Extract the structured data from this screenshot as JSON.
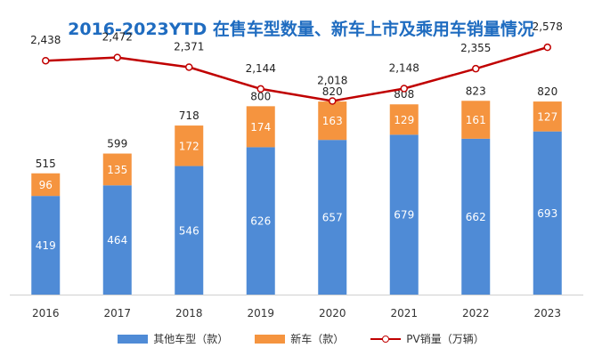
{
  "chart_data": {
    "type": "bar+line",
    "title": "2016-2023YTD 在售车型数量、新车上市及乘用车销量情况",
    "categories": [
      "2016",
      "2017",
      "2018",
      "2019",
      "2020",
      "2021",
      "2022",
      "2023"
    ],
    "stacked_bars": [
      {
        "name": "其他车型（款）",
        "color": "#4f8bd6",
        "values": [
          419,
          464,
          546,
          626,
          657,
          679,
          662,
          693
        ]
      },
      {
        "name": "新车（款）",
        "color": "#f5943f",
        "values": [
          96,
          135,
          172,
          174,
          163,
          129,
          161,
          127
        ]
      }
    ],
    "bar_totals": [
      515,
      599,
      718,
      800,
      820,
      808,
      823,
      820
    ],
    "line": {
      "name": "PV销量（万辆）",
      "color": "#c00000",
      "values": [
        2438,
        2472,
        2371,
        2144,
        2018,
        2148,
        2355,
        2578
      ]
    },
    "bar_axis_range": [
      0,
      1100
    ],
    "line_axis_range": [
      0,
      2700
    ],
    "legend": [
      "其他车型（款）",
      "新车（款）",
      "PV销量（万辆）"
    ],
    "legend_position": "bottom",
    "grid": false
  }
}
